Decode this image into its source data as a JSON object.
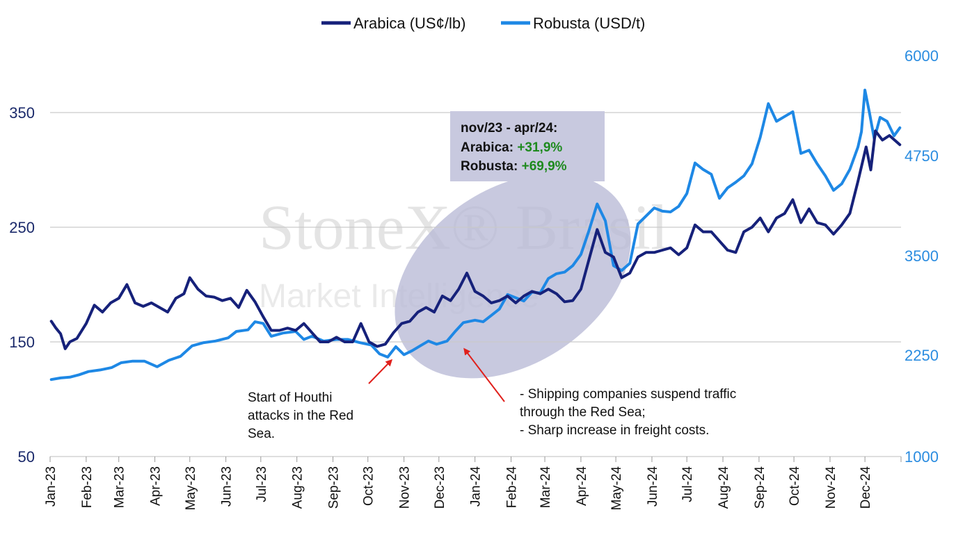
{
  "chart_data": {
    "type": "line",
    "title": "",
    "legend": {
      "placement": "top-center",
      "items": [
        {
          "name": "Arabica (US¢/lb)",
          "color": "#16217a"
        },
        {
          "name": "Robusta (USD/t)",
          "color": "#1e88e5"
        }
      ]
    },
    "grid": true,
    "y_left": {
      "min": 50,
      "max": 400,
      "ticks": [
        "350",
        "250",
        "150",
        "50"
      ]
    },
    "y_right": {
      "min": 1000,
      "max": 6000,
      "ticks": [
        "6000",
        "4750",
        "3500",
        "2250",
        "1000"
      ]
    },
    "x_range": [
      "2023-01",
      "2024-12"
    ],
    "x_ticks": [
      "Jan-23",
      "Feb-23",
      "Mar-23",
      "Apr-23",
      "May-23",
      "Jun-23",
      "Jul-23",
      "Aug-23",
      "Sep-23",
      "Oct-23",
      "Nov-23",
      "Dec-23",
      "Jan-24",
      "Feb-24",
      "Mar-24",
      "Apr-24",
      "May-24",
      "Jun-24",
      "Jul-24",
      "Aug-24",
      "Sep-24",
      "Oct-24",
      "Nov-24",
      "Dec-24"
    ],
    "series": [
      {
        "name": "Arabica (US¢/lb)",
        "axis": "left",
        "points": [
          [
            "2023-01-02",
            168
          ],
          [
            "2023-01-06",
            162
          ],
          [
            "2023-01-10",
            157
          ],
          [
            "2023-01-14",
            144
          ],
          [
            "2023-01-18",
            150
          ],
          [
            "2023-01-24",
            153
          ],
          [
            "2023-02-01",
            166
          ],
          [
            "2023-02-08",
            182
          ],
          [
            "2023-02-15",
            176
          ],
          [
            "2023-02-22",
            184
          ],
          [
            "2023-03-01",
            188
          ],
          [
            "2023-03-08",
            200
          ],
          [
            "2023-03-15",
            184
          ],
          [
            "2023-03-22",
            181
          ],
          [
            "2023-03-29",
            184
          ],
          [
            "2023-04-05",
            180
          ],
          [
            "2023-04-12",
            176
          ],
          [
            "2023-04-19",
            188
          ],
          [
            "2023-04-26",
            192
          ],
          [
            "2023-05-01",
            206
          ],
          [
            "2023-05-08",
            196
          ],
          [
            "2023-05-15",
            190
          ],
          [
            "2023-05-22",
            189
          ],
          [
            "2023-05-29",
            186
          ],
          [
            "2023-06-05",
            188
          ],
          [
            "2023-06-12",
            180
          ],
          [
            "2023-06-19",
            195
          ],
          [
            "2023-06-26",
            185
          ],
          [
            "2023-07-03",
            172
          ],
          [
            "2023-07-10",
            160
          ],
          [
            "2023-07-17",
            160
          ],
          [
            "2023-07-24",
            162
          ],
          [
            "2023-07-31",
            160
          ],
          [
            "2023-08-07",
            166
          ],
          [
            "2023-08-14",
            158
          ],
          [
            "2023-08-21",
            150
          ],
          [
            "2023-08-28",
            150
          ],
          [
            "2023-09-04",
            154
          ],
          [
            "2023-09-11",
            150
          ],
          [
            "2023-09-18",
            150
          ],
          [
            "2023-09-25",
            166
          ],
          [
            "2023-10-02",
            150
          ],
          [
            "2023-10-09",
            146
          ],
          [
            "2023-10-16",
            148
          ],
          [
            "2023-10-23",
            158
          ],
          [
            "2023-10-30",
            166
          ],
          [
            "2023-11-06",
            168
          ],
          [
            "2023-11-13",
            176
          ],
          [
            "2023-11-20",
            180
          ],
          [
            "2023-11-27",
            176
          ],
          [
            "2023-12-04",
            190
          ],
          [
            "2023-12-11",
            186
          ],
          [
            "2023-12-18",
            196
          ],
          [
            "2023-12-25",
            210
          ],
          [
            "2024-01-01",
            194
          ],
          [
            "2024-01-08",
            190
          ],
          [
            "2024-01-15",
            184
          ],
          [
            "2024-01-22",
            186
          ],
          [
            "2024-01-29",
            190
          ],
          [
            "2024-02-05",
            184
          ],
          [
            "2024-02-12",
            190
          ],
          [
            "2024-02-19",
            194
          ],
          [
            "2024-02-26",
            192
          ],
          [
            "2024-03-04",
            196
          ],
          [
            "2024-03-11",
            192
          ],
          [
            "2024-03-18",
            185
          ],
          [
            "2024-03-25",
            186
          ],
          [
            "2024-04-01",
            196
          ],
          [
            "2024-04-08",
            222
          ],
          [
            "2024-04-15",
            248
          ],
          [
            "2024-04-22",
            228
          ],
          [
            "2024-04-29",
            224
          ],
          [
            "2024-05-06",
            206
          ],
          [
            "2024-05-13",
            210
          ],
          [
            "2024-05-20",
            224
          ],
          [
            "2024-05-27",
            228
          ],
          [
            "2024-06-03",
            228
          ],
          [
            "2024-06-10",
            230
          ],
          [
            "2024-06-17",
            232
          ],
          [
            "2024-06-24",
            226
          ],
          [
            "2024-07-01",
            232
          ],
          [
            "2024-07-08",
            252
          ],
          [
            "2024-07-15",
            246
          ],
          [
            "2024-07-22",
            246
          ],
          [
            "2024-07-29",
            238
          ],
          [
            "2024-08-05",
            230
          ],
          [
            "2024-08-12",
            228
          ],
          [
            "2024-08-19",
            246
          ],
          [
            "2024-08-26",
            250
          ],
          [
            "2024-09-02",
            258
          ],
          [
            "2024-09-09",
            246
          ],
          [
            "2024-09-16",
            258
          ],
          [
            "2024-09-23",
            262
          ],
          [
            "2024-09-30",
            274
          ],
          [
            "2024-10-07",
            254
          ],
          [
            "2024-10-14",
            266
          ],
          [
            "2024-10-21",
            254
          ],
          [
            "2024-10-28",
            252
          ],
          [
            "2024-11-04",
            244
          ],
          [
            "2024-11-11",
            252
          ],
          [
            "2024-11-18",
            262
          ],
          [
            "2024-11-25",
            290
          ],
          [
            "2024-12-02",
            320
          ],
          [
            "2024-12-06",
            300
          ],
          [
            "2024-12-10",
            334
          ],
          [
            "2024-12-16",
            326
          ],
          [
            "2024-12-22",
            330
          ],
          [
            "2024-12-31",
            322
          ]
        ]
      },
      {
        "name": "Robusta (USD/t)",
        "axis": "right",
        "points": [
          [
            "2023-01-02",
            1960
          ],
          [
            "2023-01-10",
            1980
          ],
          [
            "2023-01-18",
            1990
          ],
          [
            "2023-01-26",
            2020
          ],
          [
            "2023-02-03",
            2060
          ],
          [
            "2023-02-13",
            2080
          ],
          [
            "2023-02-23",
            2110
          ],
          [
            "2023-03-03",
            2170
          ],
          [
            "2023-03-13",
            2190
          ],
          [
            "2023-03-23",
            2190
          ],
          [
            "2023-04-03",
            2120
          ],
          [
            "2023-04-13",
            2200
          ],
          [
            "2023-04-23",
            2250
          ],
          [
            "2023-05-03",
            2380
          ],
          [
            "2023-05-13",
            2420
          ],
          [
            "2023-05-23",
            2440
          ],
          [
            "2023-06-03",
            2480
          ],
          [
            "2023-06-10",
            2560
          ],
          [
            "2023-06-20",
            2580
          ],
          [
            "2023-06-26",
            2680
          ],
          [
            "2023-07-03",
            2660
          ],
          [
            "2023-07-10",
            2500
          ],
          [
            "2023-07-20",
            2540
          ],
          [
            "2023-07-31",
            2560
          ],
          [
            "2023-08-07",
            2460
          ],
          [
            "2023-08-14",
            2500
          ],
          [
            "2023-08-24",
            2440
          ],
          [
            "2023-09-04",
            2460
          ],
          [
            "2023-09-14",
            2460
          ],
          [
            "2023-09-24",
            2420
          ],
          [
            "2023-10-04",
            2390
          ],
          [
            "2023-10-11",
            2280
          ],
          [
            "2023-10-18",
            2240
          ],
          [
            "2023-10-25",
            2370
          ],
          [
            "2023-11-01",
            2270
          ],
          [
            "2023-11-08",
            2320
          ],
          [
            "2023-11-15",
            2380
          ],
          [
            "2023-11-22",
            2440
          ],
          [
            "2023-11-29",
            2400
          ],
          [
            "2023-12-08",
            2440
          ],
          [
            "2023-12-15",
            2560
          ],
          [
            "2023-12-22",
            2670
          ],
          [
            "2024-01-01",
            2700
          ],
          [
            "2024-01-08",
            2680
          ],
          [
            "2024-01-15",
            2760
          ],
          [
            "2024-01-22",
            2840
          ],
          [
            "2024-01-29",
            3020
          ],
          [
            "2024-02-05",
            2980
          ],
          [
            "2024-02-12",
            2940
          ],
          [
            "2024-02-19",
            3050
          ],
          [
            "2024-02-26",
            3040
          ],
          [
            "2024-03-04",
            3220
          ],
          [
            "2024-03-11",
            3280
          ],
          [
            "2024-03-18",
            3300
          ],
          [
            "2024-03-25",
            3380
          ],
          [
            "2024-04-01",
            3520
          ],
          [
            "2024-04-08",
            3820
          ],
          [
            "2024-04-15",
            4150
          ],
          [
            "2024-04-22",
            3940
          ],
          [
            "2024-04-29",
            3380
          ],
          [
            "2024-05-06",
            3320
          ],
          [
            "2024-05-13",
            3410
          ],
          [
            "2024-05-20",
            3900
          ],
          [
            "2024-05-27",
            4000
          ],
          [
            "2024-06-03",
            4100
          ],
          [
            "2024-06-10",
            4060
          ],
          [
            "2024-06-17",
            4050
          ],
          [
            "2024-06-24",
            4120
          ],
          [
            "2024-07-01",
            4280
          ],
          [
            "2024-07-08",
            4660
          ],
          [
            "2024-07-15",
            4580
          ],
          [
            "2024-07-22",
            4520
          ],
          [
            "2024-07-29",
            4220
          ],
          [
            "2024-08-05",
            4350
          ],
          [
            "2024-08-12",
            4420
          ],
          [
            "2024-08-19",
            4500
          ],
          [
            "2024-08-26",
            4650
          ],
          [
            "2024-09-02",
            4980
          ],
          [
            "2024-09-09",
            5400
          ],
          [
            "2024-09-16",
            5180
          ],
          [
            "2024-09-23",
            5240
          ],
          [
            "2024-09-30",
            5300
          ],
          [
            "2024-10-07",
            4780
          ],
          [
            "2024-10-14",
            4820
          ],
          [
            "2024-10-21",
            4650
          ],
          [
            "2024-10-28",
            4500
          ],
          [
            "2024-11-04",
            4320
          ],
          [
            "2024-11-11",
            4400
          ],
          [
            "2024-11-18",
            4580
          ],
          [
            "2024-11-25",
            4860
          ],
          [
            "2024-11-28",
            5050
          ],
          [
            "2024-12-01",
            5570
          ],
          [
            "2024-12-05",
            5280
          ],
          [
            "2024-12-09",
            4960
          ],
          [
            "2024-12-14",
            5230
          ],
          [
            "2024-12-20",
            5180
          ],
          [
            "2024-12-26",
            5000
          ],
          [
            "2024-12-31",
            5100
          ]
        ]
      }
    ],
    "annotations": {
      "summary_box": {
        "period": "nov/23 - apr/24:",
        "arabica_label": "Arabica:",
        "arabica_value": "+31,9%",
        "robusta_label": "Robusta:",
        "robusta_value": "+69,9%",
        "value_color": "#1e8a1e"
      },
      "note_1": [
        "Start of Houthi",
        "attacks in the Red",
        "Sea."
      ],
      "note_2": [
        "- Shipping companies suspend traffic",
        "through the Red Sea;",
        "- Sharp increase in freight costs."
      ],
      "highlight_period": [
        "2023-10-15",
        "2024-05-15"
      ],
      "arrow_color": "#e0201c"
    },
    "watermark": {
      "line1": "StoneX® Brasil",
      "line2": "Market Intelligence"
    }
  }
}
